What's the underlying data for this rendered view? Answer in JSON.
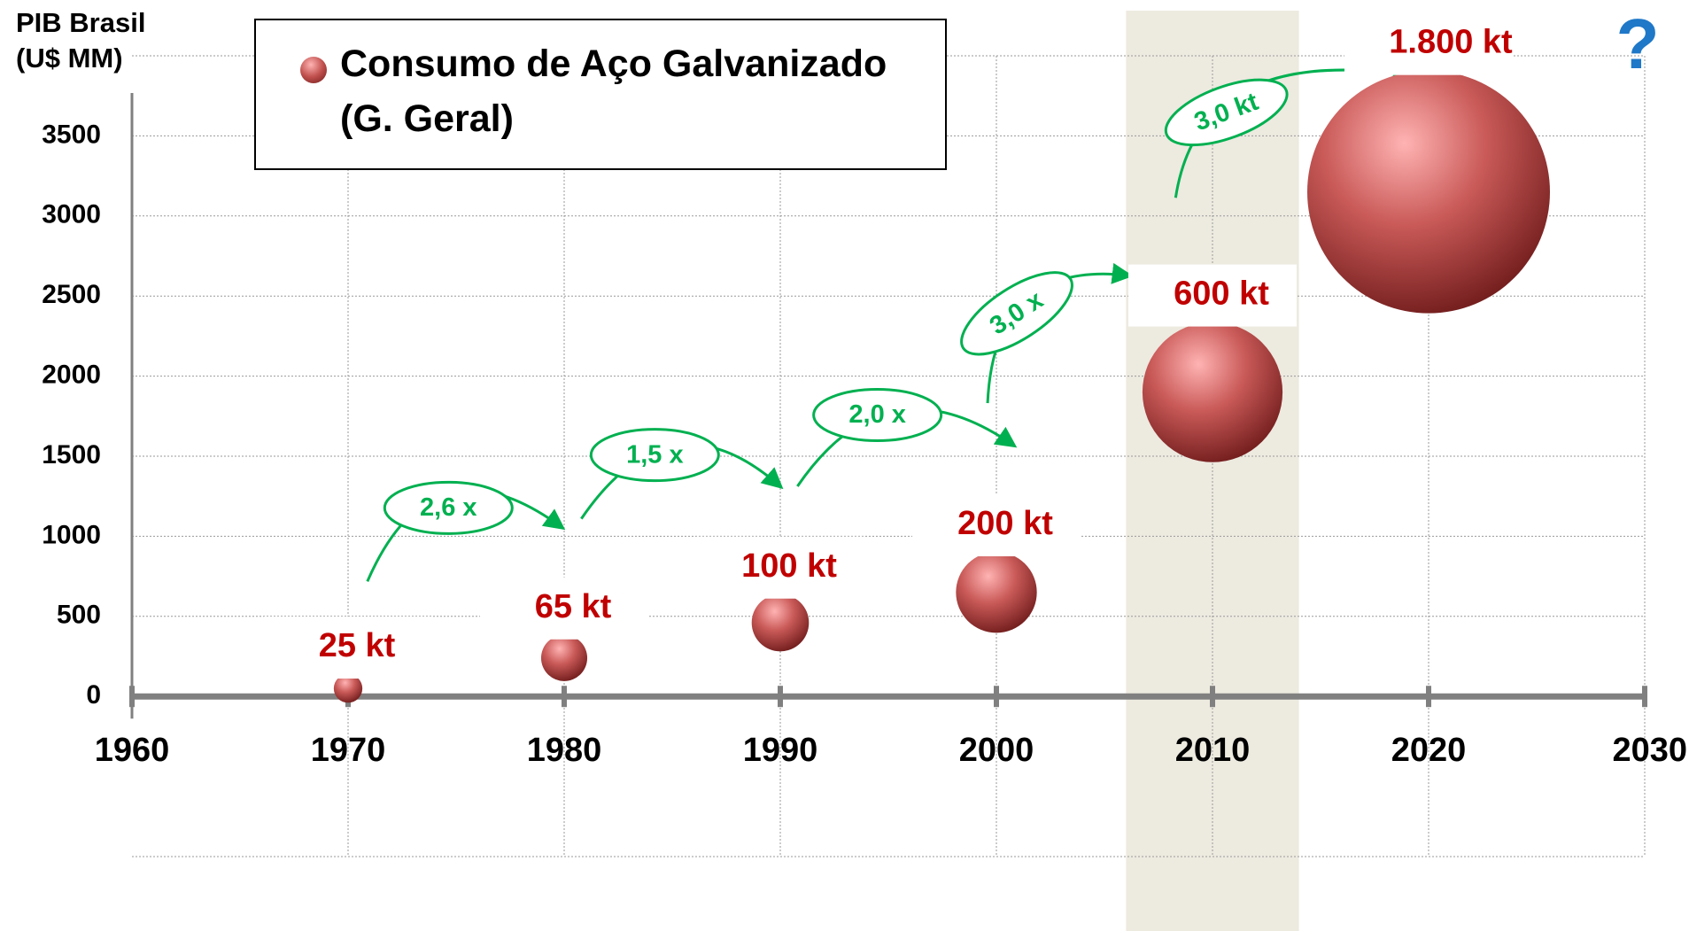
{
  "chart_data": {
    "type": "bubble",
    "y_axis_label": "PIB Brasil (U$ MM)",
    "legend": "Consumo de Aço Galvanizado (G. Geral)",
    "x": [
      1970,
      1980,
      1990,
      2000,
      2010,
      2020
    ],
    "series": [
      {
        "name": "Consumo de Aço Galvanizado (G. Geral)",
        "color": "#c0504d",
        "values": [
          50,
          240,
          460,
          650,
          1900,
          3150
        ],
        "sizes": [
          25,
          65,
          100,
          200,
          600,
          1800
        ],
        "size_labels": [
          "25 kt",
          "65 kt",
          "100 kt",
          "200 kt",
          "600 kt",
          "1.800 kt"
        ]
      }
    ],
    "xlim": [
      1960,
      2030
    ],
    "xticks": [
      1960,
      1970,
      1980,
      1990,
      2000,
      2010,
      2020,
      2030
    ],
    "ylim": [
      -1000,
      4000
    ],
    "yticks": [
      0,
      500,
      1000,
      1500,
      2000,
      2500,
      3000,
      3500
    ],
    "grid": true,
    "label_color": "#c00000",
    "annotation_color": "#00b050",
    "annotations": [
      "2,6 x",
      "1,5 x",
      "2,0 x",
      "3,0 x",
      "3,0 kt"
    ],
    "question_mark": "?",
    "highlight_x": 2010
  }
}
